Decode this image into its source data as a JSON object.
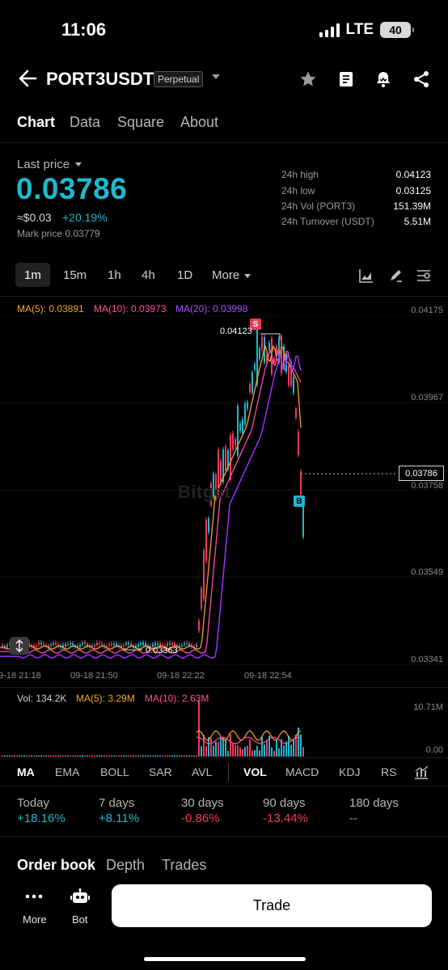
{
  "status": {
    "time": "11:06",
    "network": "LTE",
    "battery": "40"
  },
  "header": {
    "pair": "PORT3USDT",
    "badge": "Perpetual"
  },
  "tabs": [
    {
      "label": "Chart"
    },
    {
      "label": "Data"
    },
    {
      "label": "Square"
    },
    {
      "label": "About"
    }
  ],
  "price": {
    "last_price_label": "Last price",
    "last_price": "0.03786",
    "usd_approx": "≈$0.03",
    "change_pct": "+20.19%",
    "mark_price": "Mark price 0.03779"
  },
  "stats": [
    {
      "label": "24h high",
      "value": "0.04123"
    },
    {
      "label": "24h low",
      "value": "0.03125"
    },
    {
      "label": "24h Vol (PORT3)",
      "value": "151.39M"
    },
    {
      "label": "24h Turnover (USDT)",
      "value": "5.51M"
    }
  ],
  "timeframes": [
    {
      "label": "1m"
    },
    {
      "label": "15m"
    },
    {
      "label": "1h"
    },
    {
      "label": "4h"
    },
    {
      "label": "1D"
    },
    {
      "label": "More"
    }
  ],
  "chart": {
    "ma5": "MA(5): 0.03891",
    "ma10": "MA(10): 0.03973",
    "ma20": "MA(20): 0.03998",
    "y_labels": [
      "0.04175",
      "0.03967",
      "0.03758",
      "0.03549",
      "0.03341"
    ],
    "x_labels": [
      "09-18 21:18",
      "09-18 21:50",
      "09-18 22:22",
      "09-18 22:54"
    ],
    "current_price": "0.03786",
    "high_marker": "S",
    "low_marker": "B",
    "high_annotation": "0.04123",
    "low_annotation": "0.03363",
    "watermark": "Bitget",
    "colors": {
      "up": "#1fb8cd",
      "down": "#ee3b5b",
      "ma5": "#f5a623",
      "ma10": "#ff4fa3",
      "ma20": "#9b30ff"
    }
  },
  "volume": {
    "vol": "Vol: 134.2K",
    "ma5": "MA(5): 3.29M",
    "ma10": "MA(10): 2.63M",
    "y_labels": [
      "10.71M",
      "0.00"
    ]
  },
  "indicators": [
    {
      "label": "MA"
    },
    {
      "label": "EMA"
    },
    {
      "label": "BOLL"
    },
    {
      "label": "SAR"
    },
    {
      "label": "AVL"
    },
    {
      "label": "VOL"
    },
    {
      "label": "MACD"
    },
    {
      "label": "KDJ"
    },
    {
      "label": "RS"
    }
  ],
  "performance": [
    {
      "label": "Today",
      "value": "+18.16%",
      "color": "#1fb8cd"
    },
    {
      "label": "7 days",
      "value": "+8.11%",
      "color": "#1fb8cd"
    },
    {
      "label": "30 days",
      "value": "-0.86%",
      "color": "#ee3b5b"
    },
    {
      "label": "90 days",
      "value": "-13.44%",
      "color": "#ee3b5b"
    },
    {
      "label": "180 days",
      "value": "--",
      "color": "#9a9a9a"
    }
  ],
  "bottom_tabs": [
    {
      "label": "Order book"
    },
    {
      "label": "Depth"
    },
    {
      "label": "Trades"
    }
  ],
  "bottom_bar": {
    "more": "More",
    "bot": "Bot",
    "trade": "Trade"
  }
}
